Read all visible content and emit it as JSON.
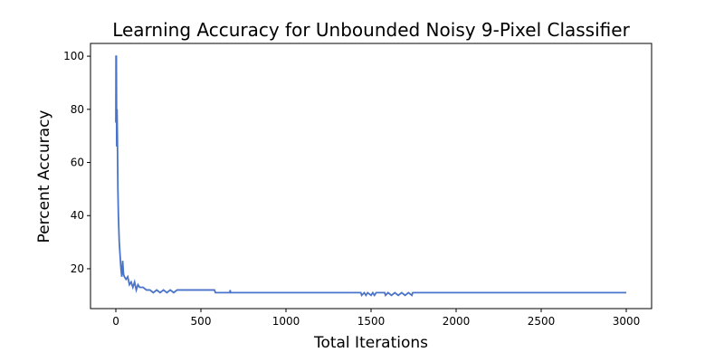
{
  "chart_data": {
    "type": "line",
    "title": "Learning Accuracy for Unbounded Noisy 9-Pixel Classifier",
    "x_label": "Total Iterations",
    "y_label": "Percent Accuracy",
    "x": [
      0,
      1,
      3,
      5,
      7,
      9,
      12,
      15,
      20,
      25,
      30,
      35,
      40,
      45,
      50,
      60,
      70,
      80,
      90,
      100,
      110,
      120,
      130,
      140,
      160,
      180,
      200,
      220,
      240,
      260,
      280,
      300,
      320,
      340,
      360,
      580,
      585,
      670,
      672,
      674,
      1440,
      1445,
      1460,
      1470,
      1480,
      1500,
      1510,
      1520,
      1530,
      1580,
      1585,
      1600,
      1620,
      1640,
      1660,
      1680,
      1700,
      1720,
      1740,
      1745,
      3000
    ],
    "series": [
      {
        "name": "Accuracy",
        "color": "#4a74c9",
        "values": [
          75,
          100,
          100,
          66,
          80,
          70,
          50,
          40,
          30,
          25,
          20,
          17,
          23,
          18,
          17,
          16,
          17,
          14,
          15,
          13,
          15,
          12,
          14,
          13,
          13,
          12,
          12,
          11,
          12,
          11,
          12,
          11,
          12,
          11,
          12,
          12,
          11,
          11,
          12,
          11,
          11,
          10,
          11,
          10,
          11,
          10,
          11,
          10,
          11,
          11,
          10,
          11,
          10,
          11,
          10,
          11,
          10,
          11,
          10,
          11,
          11
        ]
      }
    ],
    "xlim": [
      -149,
      3149
    ],
    "ylim": [
      5,
      104.8
    ],
    "xticks": [
      0,
      500,
      1000,
      1500,
      2000,
      2500,
      3000
    ],
    "yticks": [
      20,
      40,
      60,
      80,
      100
    ]
  }
}
